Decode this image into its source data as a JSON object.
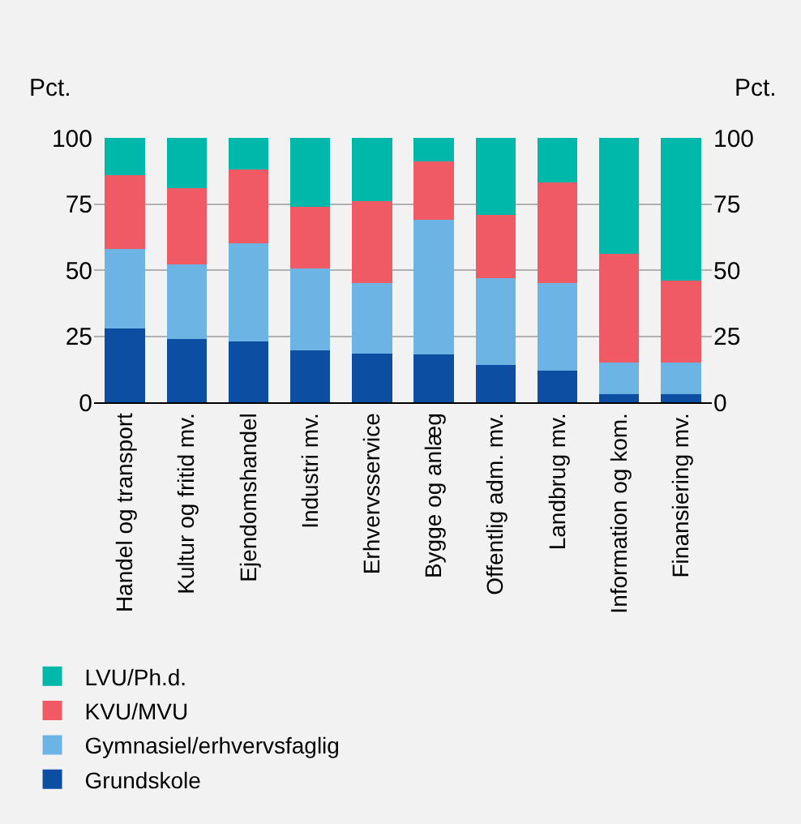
{
  "chart_data": {
    "type": "bar",
    "stacked": true,
    "ylabel": "Pct.",
    "y2label": "Pct.",
    "categories": [
      "Handel og transport",
      "Kultur og fritid mv.",
      "Ejendomshandel",
      "Industri mv.",
      "Erhvervsservice",
      "Bygge og anlæg",
      "Offentlig adm. mv.",
      "Landbrug mv.",
      "Information og kom.",
      "Finansiering mv."
    ],
    "series": [
      {
        "name": "Grundskole",
        "color": "#0c4ea2",
        "values": [
          28,
          24,
          23,
          19.5,
          18.5,
          18,
          14,
          12,
          3,
          3
        ]
      },
      {
        "name": "Gymnasiel/erhvervsfaglig",
        "color": "#6cb4e4",
        "values": [
          30,
          28,
          37,
          31,
          26.5,
          51,
          33,
          33,
          12,
          12
        ]
      },
      {
        "name": "KVU/MVU",
        "color": "#f05a64",
        "values": [
          28,
          29,
          28,
          23.5,
          31,
          22,
          24,
          38,
          41,
          31
        ]
      },
      {
        "name": "LVU/Ph.d.",
        "color": "#00b8a9",
        "values": [
          14,
          19,
          12,
          26,
          24,
          9,
          29,
          17,
          44,
          54
        ]
      }
    ],
    "ylim": [
      0,
      100
    ],
    "yticks": [
      0,
      25,
      50,
      75,
      100
    ],
    "y2lim": [
      0,
      100
    ],
    "y2ticks": [
      0,
      25,
      50,
      75,
      100
    ],
    "grid": "y",
    "legend": "bottom"
  }
}
